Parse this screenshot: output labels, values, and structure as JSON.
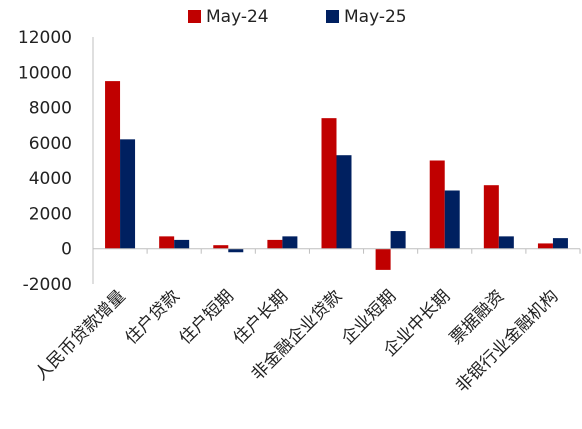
{
  "chart_data": {
    "type": "bar",
    "categories": [
      "人民币贷款增量",
      "住户贷款",
      "住户短期",
      "住户长期",
      "非金融企业贷款",
      "企业短期",
      "企业中长期",
      "票据融资",
      "非银行业金融机构"
    ],
    "series": [
      {
        "name": "May-24",
        "color": "#C00000",
        "values": [
          9500,
          700,
          200,
          500,
          7400,
          -1200,
          5000,
          3600,
          300
        ]
      },
      {
        "name": "May-25",
        "color": "#002060",
        "values": [
          6200,
          500,
          -200,
          700,
          5300,
          1000,
          3300,
          700,
          600
        ]
      }
    ],
    "ylim": [
      -2000,
      12000
    ],
    "yticks": [
      12000,
      10000,
      8000,
      6000,
      4000,
      2000,
      0,
      -2000
    ],
    "legend_position": "top"
  }
}
